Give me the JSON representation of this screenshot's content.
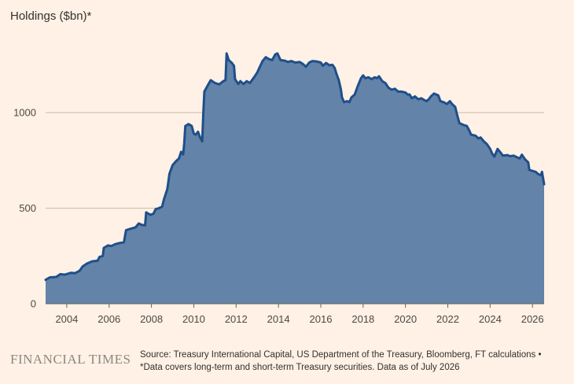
{
  "colors": {
    "background": "#fff1e5",
    "area_fill": "#6383a8",
    "line": "#1f4f8a",
    "grid": "#c9b9ac",
    "text": "#33302e"
  },
  "footer": {
    "logo": "FINANCIAL TIMES",
    "source_line1": "Source: Treasury International Capital, US Department of the Treasury, Bloomberg, FT calculations •",
    "source_line2": "*Data covers long-term and short-term Treasury securities. Data as of July 2026"
  },
  "chart_data": {
    "type": "area",
    "ylabel": "Holdings ($bn)*",
    "xlabel": "",
    "xlim": [
      2003.0,
      2026.55
    ],
    "ylim": [
      0,
      1400
    ],
    "y_ticks": [
      0,
      500,
      1000
    ],
    "x_ticks": [
      2004,
      2006,
      2008,
      2010,
      2012,
      2014,
      2016,
      2018,
      2020,
      2022,
      2024,
      2026
    ],
    "grid": true,
    "legend": "none",
    "series": [
      {
        "points": [
          [
            2003.0,
            125
          ],
          [
            2003.2,
            138
          ],
          [
            2003.5,
            140
          ],
          [
            2003.7,
            155
          ],
          [
            2003.9,
            152
          ],
          [
            2004.2,
            162
          ],
          [
            2004.4,
            160
          ],
          [
            2004.6,
            172
          ],
          [
            2004.75,
            195
          ],
          [
            2004.95,
            210
          ],
          [
            2005.2,
            222
          ],
          [
            2005.45,
            225
          ],
          [
            2005.55,
            245
          ],
          [
            2005.7,
            250
          ],
          [
            2005.75,
            292
          ],
          [
            2005.95,
            305
          ],
          [
            2006.1,
            302
          ],
          [
            2006.3,
            312
          ],
          [
            2006.5,
            318
          ],
          [
            2006.7,
            322
          ],
          [
            2006.8,
            385
          ],
          [
            2007.0,
            392
          ],
          [
            2007.25,
            400
          ],
          [
            2007.4,
            420
          ],
          [
            2007.55,
            412
          ],
          [
            2007.7,
            410
          ],
          [
            2007.75,
            478
          ],
          [
            2007.95,
            465
          ],
          [
            2008.1,
            472
          ],
          [
            2008.2,
            495
          ],
          [
            2008.35,
            500
          ],
          [
            2008.5,
            508
          ],
          [
            2008.6,
            550
          ],
          [
            2008.75,
            600
          ],
          [
            2008.85,
            680
          ],
          [
            2009.0,
            725
          ],
          [
            2009.15,
            745
          ],
          [
            2009.3,
            760
          ],
          [
            2009.4,
            795
          ],
          [
            2009.5,
            782
          ],
          [
            2009.55,
            840
          ],
          [
            2009.6,
            930
          ],
          [
            2009.75,
            940
          ],
          [
            2009.9,
            930
          ],
          [
            2010.0,
            890
          ],
          [
            2010.1,
            885
          ],
          [
            2010.2,
            900
          ],
          [
            2010.3,
            870
          ],
          [
            2010.4,
            850
          ],
          [
            2010.45,
            1000
          ],
          [
            2010.5,
            1110
          ],
          [
            2010.65,
            1140
          ],
          [
            2010.8,
            1170
          ],
          [
            2011.0,
            1155
          ],
          [
            2011.2,
            1148
          ],
          [
            2011.4,
            1165
          ],
          [
            2011.5,
            1170
          ],
          [
            2011.55,
            1310
          ],
          [
            2011.65,
            1275
          ],
          [
            2011.8,
            1260
          ],
          [
            2011.9,
            1245
          ],
          [
            2011.95,
            1175
          ],
          [
            2012.1,
            1150
          ],
          [
            2012.2,
            1165
          ],
          [
            2012.35,
            1150
          ],
          [
            2012.5,
            1165
          ],
          [
            2012.65,
            1155
          ],
          [
            2012.85,
            1185
          ],
          [
            2013.0,
            1210
          ],
          [
            2013.1,
            1235
          ],
          [
            2013.25,
            1270
          ],
          [
            2013.4,
            1290
          ],
          [
            2013.55,
            1280
          ],
          [
            2013.7,
            1275
          ],
          [
            2013.85,
            1305
          ],
          [
            2013.95,
            1310
          ],
          [
            2014.1,
            1275
          ],
          [
            2014.3,
            1272
          ],
          [
            2014.45,
            1265
          ],
          [
            2014.6,
            1270
          ],
          [
            2014.8,
            1262
          ],
          [
            2015.0,
            1265
          ],
          [
            2015.15,
            1255
          ],
          [
            2015.3,
            1240
          ],
          [
            2015.45,
            1262
          ],
          [
            2015.6,
            1270
          ],
          [
            2015.8,
            1268
          ],
          [
            2016.0,
            1262
          ],
          [
            2016.1,
            1245
          ],
          [
            2016.25,
            1260
          ],
          [
            2016.4,
            1248
          ],
          [
            2016.55,
            1250
          ],
          [
            2016.65,
            1235
          ],
          [
            2016.75,
            1200
          ],
          [
            2016.85,
            1170
          ],
          [
            2016.95,
            1120
          ],
          [
            2017.0,
            1080
          ],
          [
            2017.1,
            1055
          ],
          [
            2017.25,
            1060
          ],
          [
            2017.35,
            1055
          ],
          [
            2017.45,
            1080
          ],
          [
            2017.6,
            1095
          ],
          [
            2017.75,
            1140
          ],
          [
            2017.9,
            1180
          ],
          [
            2018.0,
            1195
          ],
          [
            2018.1,
            1180
          ],
          [
            2018.25,
            1185
          ],
          [
            2018.4,
            1175
          ],
          [
            2018.55,
            1185
          ],
          [
            2018.65,
            1180
          ],
          [
            2018.75,
            1190
          ],
          [
            2018.9,
            1165
          ],
          [
            2019.05,
            1155
          ],
          [
            2019.2,
            1130
          ],
          [
            2019.35,
            1120
          ],
          [
            2019.5,
            1125
          ],
          [
            2019.65,
            1110
          ],
          [
            2019.8,
            1110
          ],
          [
            2020.0,
            1105
          ],
          [
            2020.1,
            1095
          ],
          [
            2020.2,
            1095
          ],
          [
            2020.3,
            1075
          ],
          [
            2020.45,
            1085
          ],
          [
            2020.6,
            1070
          ],
          [
            2020.75,
            1075
          ],
          [
            2020.9,
            1065
          ],
          [
            2021.0,
            1060
          ],
          [
            2021.1,
            1070
          ],
          [
            2021.2,
            1085
          ],
          [
            2021.35,
            1100
          ],
          [
            2021.55,
            1090
          ],
          [
            2021.65,
            1060
          ],
          [
            2021.8,
            1055
          ],
          [
            2021.95,
            1045
          ],
          [
            2022.1,
            1060
          ],
          [
            2022.2,
            1045
          ],
          [
            2022.35,
            1030
          ],
          [
            2022.45,
            985
          ],
          [
            2022.55,
            945
          ],
          [
            2022.75,
            935
          ],
          [
            2022.9,
            930
          ],
          [
            2023.0,
            910
          ],
          [
            2023.1,
            885
          ],
          [
            2023.3,
            880
          ],
          [
            2023.45,
            865
          ],
          [
            2023.55,
            870
          ],
          [
            2023.7,
            850
          ],
          [
            2023.85,
            835
          ],
          [
            2024.0,
            810
          ],
          [
            2024.1,
            785
          ],
          [
            2024.2,
            770
          ],
          [
            2024.35,
            810
          ],
          [
            2024.5,
            790
          ],
          [
            2024.6,
            775
          ],
          [
            2024.8,
            778
          ],
          [
            2024.95,
            772
          ],
          [
            2025.1,
            775
          ],
          [
            2025.3,
            765
          ],
          [
            2025.4,
            760
          ],
          [
            2025.5,
            780
          ],
          [
            2025.65,
            755
          ],
          [
            2025.8,
            740
          ],
          [
            2025.85,
            700
          ],
          [
            2026.0,
            695
          ],
          [
            2026.15,
            690
          ],
          [
            2026.25,
            680
          ],
          [
            2026.4,
            672
          ],
          [
            2026.45,
            690
          ],
          [
            2026.55,
            625
          ]
        ]
      }
    ]
  }
}
